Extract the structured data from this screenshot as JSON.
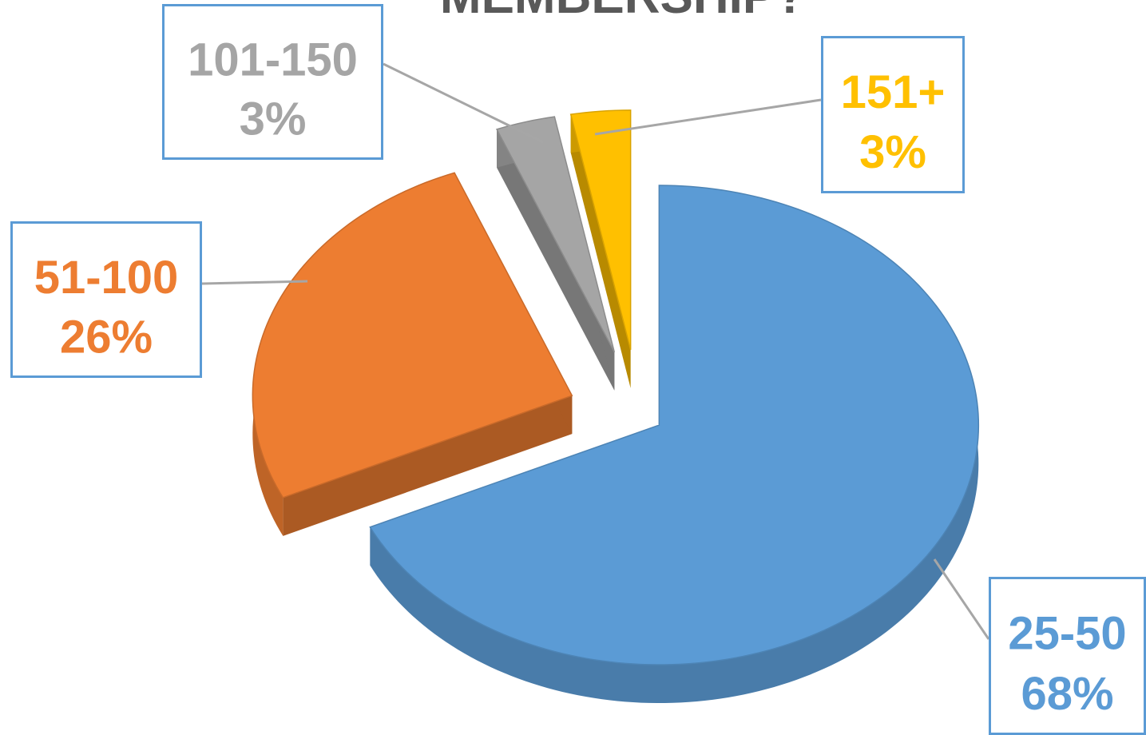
{
  "chart_data": {
    "type": "pie",
    "title": "MEMBERSHIP?",
    "categories": [
      "25-50",
      "51-100",
      "101-150",
      "151+"
    ],
    "values": [
      68,
      26,
      3,
      3
    ],
    "value_labels": [
      "68%",
      "26%",
      "3%",
      "3%"
    ],
    "colors": [
      "#5b9bd5",
      "#ed7d31",
      "#a5a5a5",
      "#ffc000"
    ]
  }
}
